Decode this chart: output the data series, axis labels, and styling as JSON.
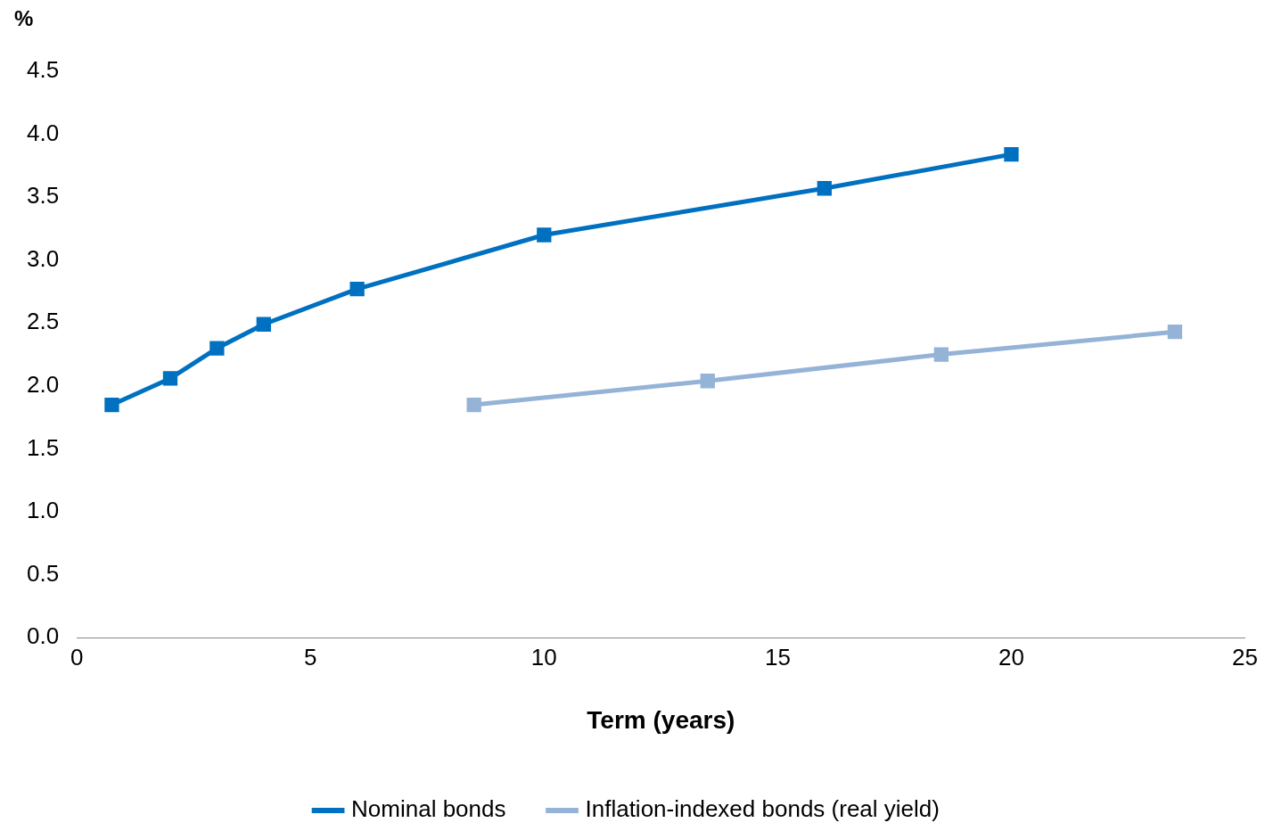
{
  "chart_data": {
    "type": "line",
    "ylabel": "%",
    "xlabel": "Term (years)",
    "xlim": [
      0,
      25
    ],
    "xticks": [
      0,
      5,
      10,
      15,
      20,
      25
    ],
    "ylim": [
      0,
      4.5
    ],
    "yticks": [
      {
        "value": 0,
        "label": "0.0"
      },
      {
        "value": 0.5,
        "label": "0.5"
      },
      {
        "value": 1,
        "label": "1.0"
      },
      {
        "value": 1.5,
        "label": "1.5"
      },
      {
        "value": 2,
        "label": "2.0"
      },
      {
        "value": 2.5,
        "label": "2.5"
      },
      {
        "value": 3,
        "label": "3.0"
      },
      {
        "value": 3.5,
        "label": "3.5"
      },
      {
        "value": 4,
        "label": "4.0"
      },
      {
        "value": 4.5,
        "label": "4.5"
      }
    ],
    "series": [
      {
        "name": "Nominal bonds",
        "color": "#0070c0",
        "x": [
          0.75,
          2,
          3,
          4,
          6,
          10,
          16,
          20
        ],
        "values": [
          1.85,
          2.06,
          2.3,
          2.49,
          2.77,
          3.2,
          3.57,
          3.84
        ]
      },
      {
        "name": "Inflation-indexed bonds (real yield)",
        "color": "#95b3d7",
        "x": [
          8.5,
          13.5,
          18.5,
          23.5
        ],
        "values": [
          1.85,
          2.04,
          2.25,
          2.43
        ]
      }
    ],
    "marker": "square",
    "line_style": "solid",
    "grid": false,
    "legend": "bottom"
  }
}
